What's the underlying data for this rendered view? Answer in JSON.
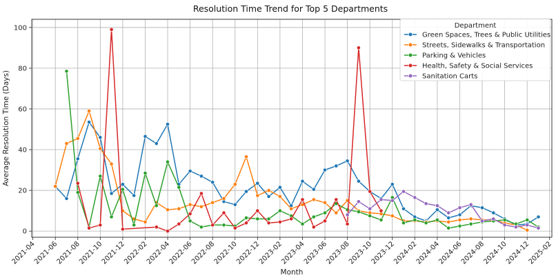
{
  "chart_data": {
    "type": "line",
    "title": "Resolution Time Trend for Top 5 Departments",
    "xlabel": "Month",
    "ylabel": "Average Resolution Time (Days)",
    "xlim": [
      "2021-04",
      "2025-02"
    ],
    "ylim": [
      -3,
      104
    ],
    "x_ticks": [
      "2021-04",
      "2021-06",
      "2021-08",
      "2021-10",
      "2021-12",
      "2022-02",
      "2022-04",
      "2022-06",
      "2022-08",
      "2022-10",
      "2022-12",
      "2023-02",
      "2023-04",
      "2023-06",
      "2023-08",
      "2023-10",
      "2023-12",
      "2024-02",
      "2024-04",
      "2024-06",
      "2024-08",
      "2024-10",
      "2024-12",
      "2025-02"
    ],
    "y_ticks": [
      0,
      20,
      40,
      60,
      80,
      100
    ],
    "grid": true,
    "legend_title": "Department",
    "legend_position": "top-right",
    "series": [
      {
        "name": "Green Spaces, Trees & Public Utilities",
        "color": "#1f77b4",
        "points": [
          [
            "2021-06",
            22
          ],
          [
            "2021-07",
            16
          ],
          [
            "2021-08",
            35.5
          ],
          [
            "2021-09",
            53.5
          ],
          [
            "2021-10",
            46
          ],
          [
            "2021-11",
            18.5
          ],
          [
            "2021-12",
            23
          ],
          [
            "2022-01",
            17.5
          ],
          [
            "2022-02",
            46.5
          ],
          [
            "2022-03",
            43
          ],
          [
            "2022-04",
            52.5
          ],
          [
            "2022-05",
            23
          ],
          [
            "2022-06",
            29.5
          ],
          [
            "2022-07",
            27
          ],
          [
            "2022-08",
            24
          ],
          [
            "2022-09",
            14.5
          ],
          [
            "2022-10",
            13
          ],
          [
            "2022-11",
            19.5
          ],
          [
            "2022-12",
            23.5
          ],
          [
            "2023-01",
            17
          ],
          [
            "2023-02",
            21.5
          ],
          [
            "2023-03",
            12.5
          ],
          [
            "2023-04",
            24.5
          ],
          [
            "2023-05",
            20.5
          ],
          [
            "2023-06",
            30
          ],
          [
            "2023-07",
            32
          ],
          [
            "2023-08",
            34.5
          ],
          [
            "2023-09",
            24.5
          ],
          [
            "2023-10",
            19.5
          ],
          [
            "2023-11",
            16
          ],
          [
            "2023-12",
            23
          ],
          [
            "2024-01",
            11
          ],
          [
            "2024-02",
            7
          ],
          [
            "2024-03",
            5
          ],
          [
            "2024-04",
            10.5
          ],
          [
            "2024-05",
            6.5
          ],
          [
            "2024-06",
            8
          ],
          [
            "2024-07",
            12.5
          ],
          [
            "2024-08",
            11.5
          ],
          [
            "2024-09",
            9
          ],
          [
            "2024-10",
            6
          ],
          [
            "2024-11",
            3
          ],
          [
            "2024-12",
            3.5
          ],
          [
            "2025-01",
            7
          ]
        ]
      },
      {
        "name": "Streets, Sidewalks & Transportation",
        "color": "#ff7f0e",
        "points": [
          [
            "2021-06",
            22
          ],
          [
            "2021-07",
            43
          ],
          [
            "2021-08",
            45.5
          ],
          [
            "2021-09",
            59
          ],
          [
            "2021-10",
            40.5
          ],
          [
            "2021-11",
            33
          ],
          [
            "2021-12",
            10
          ],
          [
            "2022-01",
            6
          ],
          [
            "2022-02",
            4.5
          ],
          [
            "2022-03",
            14
          ],
          [
            "2022-04",
            10.5
          ],
          [
            "2022-05",
            11
          ],
          [
            "2022-06",
            13
          ],
          [
            "2022-07",
            12
          ],
          [
            "2022-08",
            14
          ],
          [
            "2022-09",
            16
          ],
          [
            "2022-10",
            23
          ],
          [
            "2022-11",
            36.5
          ],
          [
            "2022-12",
            17.5
          ],
          [
            "2023-01",
            20
          ],
          [
            "2023-02",
            17
          ],
          [
            "2023-03",
            11
          ],
          [
            "2023-04",
            13
          ],
          [
            "2023-05",
            15.5
          ],
          [
            "2023-06",
            14
          ],
          [
            "2023-07",
            9
          ],
          [
            "2023-08",
            15
          ],
          [
            "2023-09",
            10
          ],
          [
            "2023-10",
            9
          ],
          [
            "2023-11",
            8.5
          ],
          [
            "2023-12",
            7.5
          ],
          [
            "2024-01",
            5
          ],
          [
            "2024-02",
            5
          ],
          [
            "2024-03",
            4.5
          ],
          [
            "2024-04",
            5
          ],
          [
            "2024-05",
            4.5
          ],
          [
            "2024-06",
            5.5
          ],
          [
            "2024-07",
            6
          ],
          [
            "2024-08",
            5.5
          ],
          [
            "2024-09",
            5.5
          ],
          [
            "2024-10",
            4
          ],
          [
            "2024-11",
            3
          ],
          [
            "2024-12",
            0.5
          ]
        ]
      },
      {
        "name": "Parking & Vehicles",
        "color": "#2ca02c",
        "points": [
          [
            "2021-07",
            78.5
          ],
          [
            "2021-08",
            19
          ],
          [
            "2021-09",
            2
          ],
          [
            "2021-10",
            27
          ],
          [
            "2021-11",
            7
          ],
          [
            "2021-12",
            20.5
          ],
          [
            "2022-01",
            3
          ],
          [
            "2022-02",
            28.5
          ],
          [
            "2022-03",
            12.5
          ],
          [
            "2022-04",
            34
          ],
          [
            "2022-05",
            21.5
          ],
          [
            "2022-06",
            5
          ],
          [
            "2022-07",
            2
          ],
          [
            "2022-08",
            3
          ],
          [
            "2022-09",
            3
          ],
          [
            "2022-10",
            2.5
          ],
          [
            "2022-11",
            6.5
          ],
          [
            "2022-12",
            6
          ],
          [
            "2023-01",
            6
          ],
          [
            "2023-02",
            10
          ],
          [
            "2023-03",
            7.5
          ],
          [
            "2023-04",
            3.5
          ],
          [
            "2023-05",
            7
          ],
          [
            "2023-06",
            9
          ],
          [
            "2023-07",
            13.5
          ],
          [
            "2023-08",
            10.5
          ],
          [
            "2023-09",
            9.5
          ],
          [
            "2023-10",
            7.5
          ],
          [
            "2023-11",
            5.5
          ],
          [
            "2023-12",
            16.5
          ],
          [
            "2024-01",
            4
          ],
          [
            "2024-02",
            5.5
          ],
          [
            "2024-03",
            4
          ],
          [
            "2024-04",
            5.5
          ],
          [
            "2024-05",
            1.5
          ],
          [
            "2024-06",
            2.5
          ],
          [
            "2024-07",
            3.5
          ],
          [
            "2024-08",
            4.5
          ],
          [
            "2024-09",
            5
          ],
          [
            "2024-10",
            5.5
          ],
          [
            "2024-11",
            3.5
          ],
          [
            "2024-12",
            5.5
          ],
          [
            "2025-01",
            2
          ]
        ]
      },
      {
        "name": "Health, Safety & Social Services",
        "color": "#d62728",
        "points": [
          [
            "2021-08",
            23.5
          ],
          [
            "2021-09",
            1.5
          ],
          [
            "2021-10",
            3
          ],
          [
            "2021-11",
            99
          ],
          [
            "2021-12",
            1
          ],
          [
            "2022-03",
            2
          ],
          [
            "2022-04",
            0
          ],
          [
            "2022-05",
            3.5
          ],
          [
            "2022-06",
            8.5
          ],
          [
            "2022-07",
            18.5
          ],
          [
            "2022-08",
            3
          ],
          [
            "2022-09",
            9
          ],
          [
            "2022-10",
            1.5
          ],
          [
            "2022-11",
            4
          ],
          [
            "2022-12",
            10
          ],
          [
            "2023-01",
            4
          ],
          [
            "2023-02",
            4.5
          ],
          [
            "2023-03",
            6
          ],
          [
            "2023-04",
            15.5
          ],
          [
            "2023-05",
            2
          ],
          [
            "2023-06",
            5
          ],
          [
            "2023-07",
            15.5
          ],
          [
            "2023-08",
            3.5
          ],
          [
            "2023-09",
            90
          ],
          [
            "2023-10",
            19.5
          ],
          [
            "2023-11",
            10
          ]
        ]
      },
      {
        "name": "Sanitation Carts",
        "color": "#9467bd",
        "points": [
          [
            "2023-08",
            8
          ],
          [
            "2023-09",
            14.5
          ],
          [
            "2023-10",
            11
          ],
          [
            "2023-11",
            15.5
          ],
          [
            "2023-12",
            15
          ],
          [
            "2024-01",
            19.5
          ],
          [
            "2024-02",
            16.5
          ],
          [
            "2024-03",
            13.5
          ],
          [
            "2024-04",
            12.5
          ],
          [
            "2024-05",
            9
          ],
          [
            "2024-06",
            11.5
          ],
          [
            "2024-07",
            13
          ],
          [
            "2024-08",
            5
          ],
          [
            "2024-09",
            6
          ],
          [
            "2024-10",
            3
          ],
          [
            "2024-11",
            2
          ],
          [
            "2024-12",
            3
          ],
          [
            "2025-01",
            1.5
          ]
        ]
      }
    ]
  }
}
